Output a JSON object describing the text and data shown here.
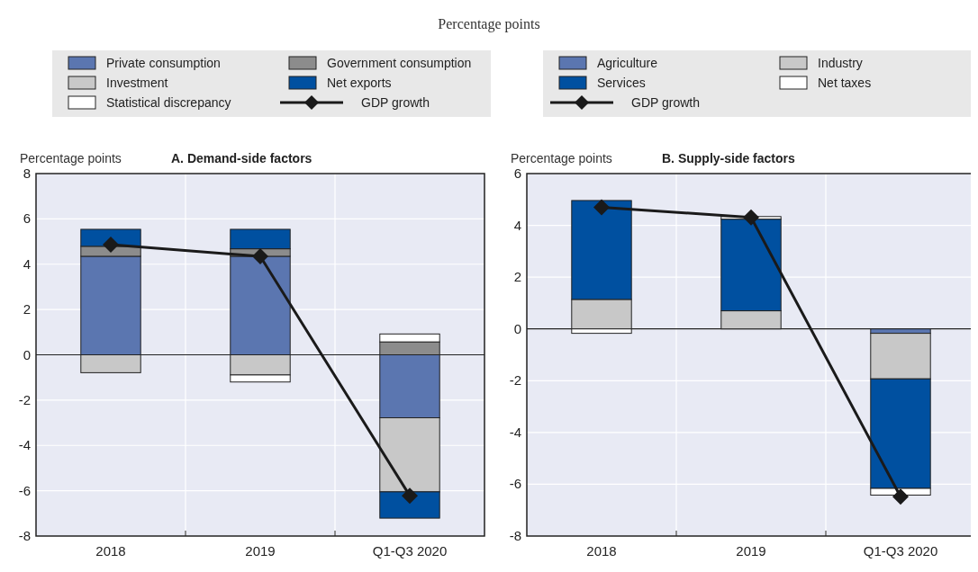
{
  "chart_data": [
    {
      "type": "bar",
      "subtitle": "Percentage points",
      "title": "A. Demand-side factors",
      "ylabel": "Percentage points",
      "categories": [
        "2018",
        "2019",
        "Q1-Q3 2020"
      ],
      "stacked": true,
      "ylim": [
        -8,
        8
      ],
      "yticks": [
        -8,
        -6,
        -4,
        -2,
        0,
        2,
        4,
        6,
        8
      ],
      "grid": true,
      "legend": "top",
      "series": [
        {
          "name": "Private consumption",
          "color": "#5b76b0",
          "values": [
            4.35,
            4.35,
            -2.78
          ]
        },
        {
          "name": "Government consumption",
          "color": "#8c8c8c",
          "values": [
            0.44,
            0.33,
            0.57
          ]
        },
        {
          "name": "Investment",
          "color": "#c8c8c8",
          "values": [
            -0.79,
            -0.89,
            -3.27
          ]
        },
        {
          "name": "Net exports",
          "color": "#0050a0",
          "values": [
            0.75,
            0.86,
            -1.16
          ]
        },
        {
          "name": "Statistical discrepancy",
          "color": "#ffffff",
          "values": [
            0,
            -0.31,
            0.35
          ]
        },
        {
          "name": "GDP growth",
          "type": "line",
          "color": "#1a1a1a",
          "marker": "diamond",
          "values": [
            4.86,
            4.35,
            -6.22
          ]
        }
      ]
    },
    {
      "type": "bar",
      "title": "B. Supply-side factors",
      "ylabel": "Percentage points",
      "categories": [
        "2018",
        "2019",
        "Q1-Q3 2020"
      ],
      "stacked": true,
      "ylim": [
        -8,
        6
      ],
      "yticks": [
        -8,
        -6,
        -4,
        -2,
        0,
        2,
        4,
        6
      ],
      "grid": true,
      "legend": "top",
      "series": [
        {
          "name": "Agriculture",
          "color": "#5b76b0",
          "values": [
            0,
            0,
            -0.17
          ]
        },
        {
          "name": "Industry",
          "color": "#c8c8c8",
          "values": [
            1.14,
            0.7,
            -1.76
          ]
        },
        {
          "name": "Services",
          "color": "#0050a0",
          "values": [
            3.82,
            3.54,
            -4.23
          ]
        },
        {
          "name": "Net taxes",
          "color": "#ffffff",
          "values": [
            -0.17,
            0.1,
            -0.26
          ]
        },
        {
          "name": "GDP growth",
          "type": "line",
          "color": "#1a1a1a",
          "marker": "diamond",
          "values": [
            4.7,
            4.31,
            -6.48
          ]
        }
      ]
    }
  ]
}
